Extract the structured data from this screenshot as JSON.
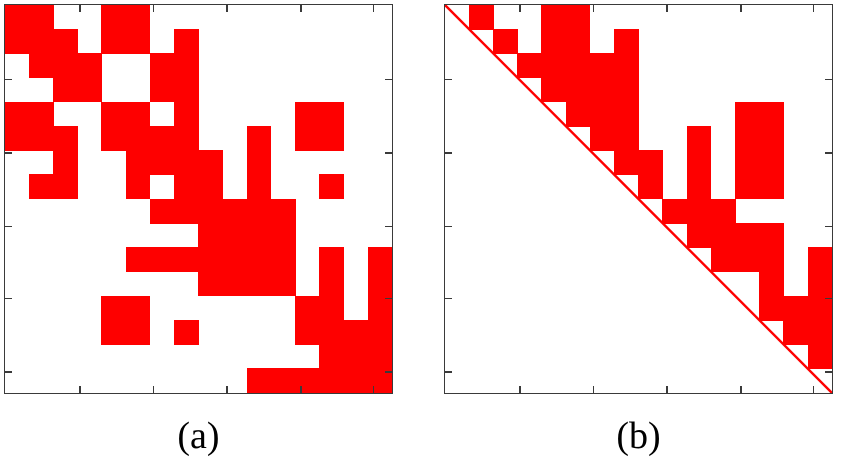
{
  "figure": {
    "background_color": "#ffffff",
    "matrix_fill_color": "#fe0000",
    "axis_color": "#3a3a3a",
    "grid_size": 16
  },
  "panel_a": {
    "label": "(a)"
  },
  "panel_b": {
    "label": "(b)"
  },
  "chart_data": [
    {
      "type": "heatmap",
      "title": "(a)",
      "description": "16x16 binary sparsity pattern, red = nonzero",
      "grid_size": 16,
      "fill_color": "#fe0000",
      "has_diagonal_line": false,
      "legend_position": "none",
      "grid": "off",
      "tick_fractions_x": [
        0.191,
        0.382,
        0.572,
        0.763,
        0.95
      ],
      "tick_fractions_y": [
        0.19,
        0.379,
        0.569,
        0.754,
        0.944
      ],
      "matrix": [
        "1100110000000000",
        "1110110100000000",
        "0111001100000000",
        "0011001100000000",
        "1100110100001100",
        "1110111100101100",
        "0010011110100000",
        "0110010110100100",
        "0000001111110000",
        "0000000011110000",
        "0000011111110101",
        "0000000011110101",
        "0000110000001101",
        "0000110100001111",
        "0000000000000111",
        "0000000000111111"
      ]
    },
    {
      "type": "heatmap",
      "title": "(b)",
      "description": "16x16 upper-triangular binary pattern with red main-diagonal line",
      "grid_size": 16,
      "fill_color": "#fe0000",
      "has_diagonal_line": true,
      "diagonal_line_width": 2.4,
      "legend_position": "none",
      "grid": "off",
      "tick_fractions_x": [
        0.191,
        0.382,
        0.572,
        0.763,
        0.95
      ],
      "tick_fractions_y": [
        0.19,
        0.379,
        0.569,
        0.754,
        0.944
      ],
      "matrix": [
        "0100110000000000",
        "0010110100000000",
        "0001111100000000",
        "0000111100000000",
        "0000011100001100",
        "0000001100101100",
        "0000000110101100",
        "0000000010101100",
        "0000000001110000",
        "0000000000111100",
        "0000000000011101",
        "0000000000000101",
        "0000000000000111",
        "0000000000000011",
        "0000000000000001",
        "0000000000000000"
      ]
    }
  ]
}
